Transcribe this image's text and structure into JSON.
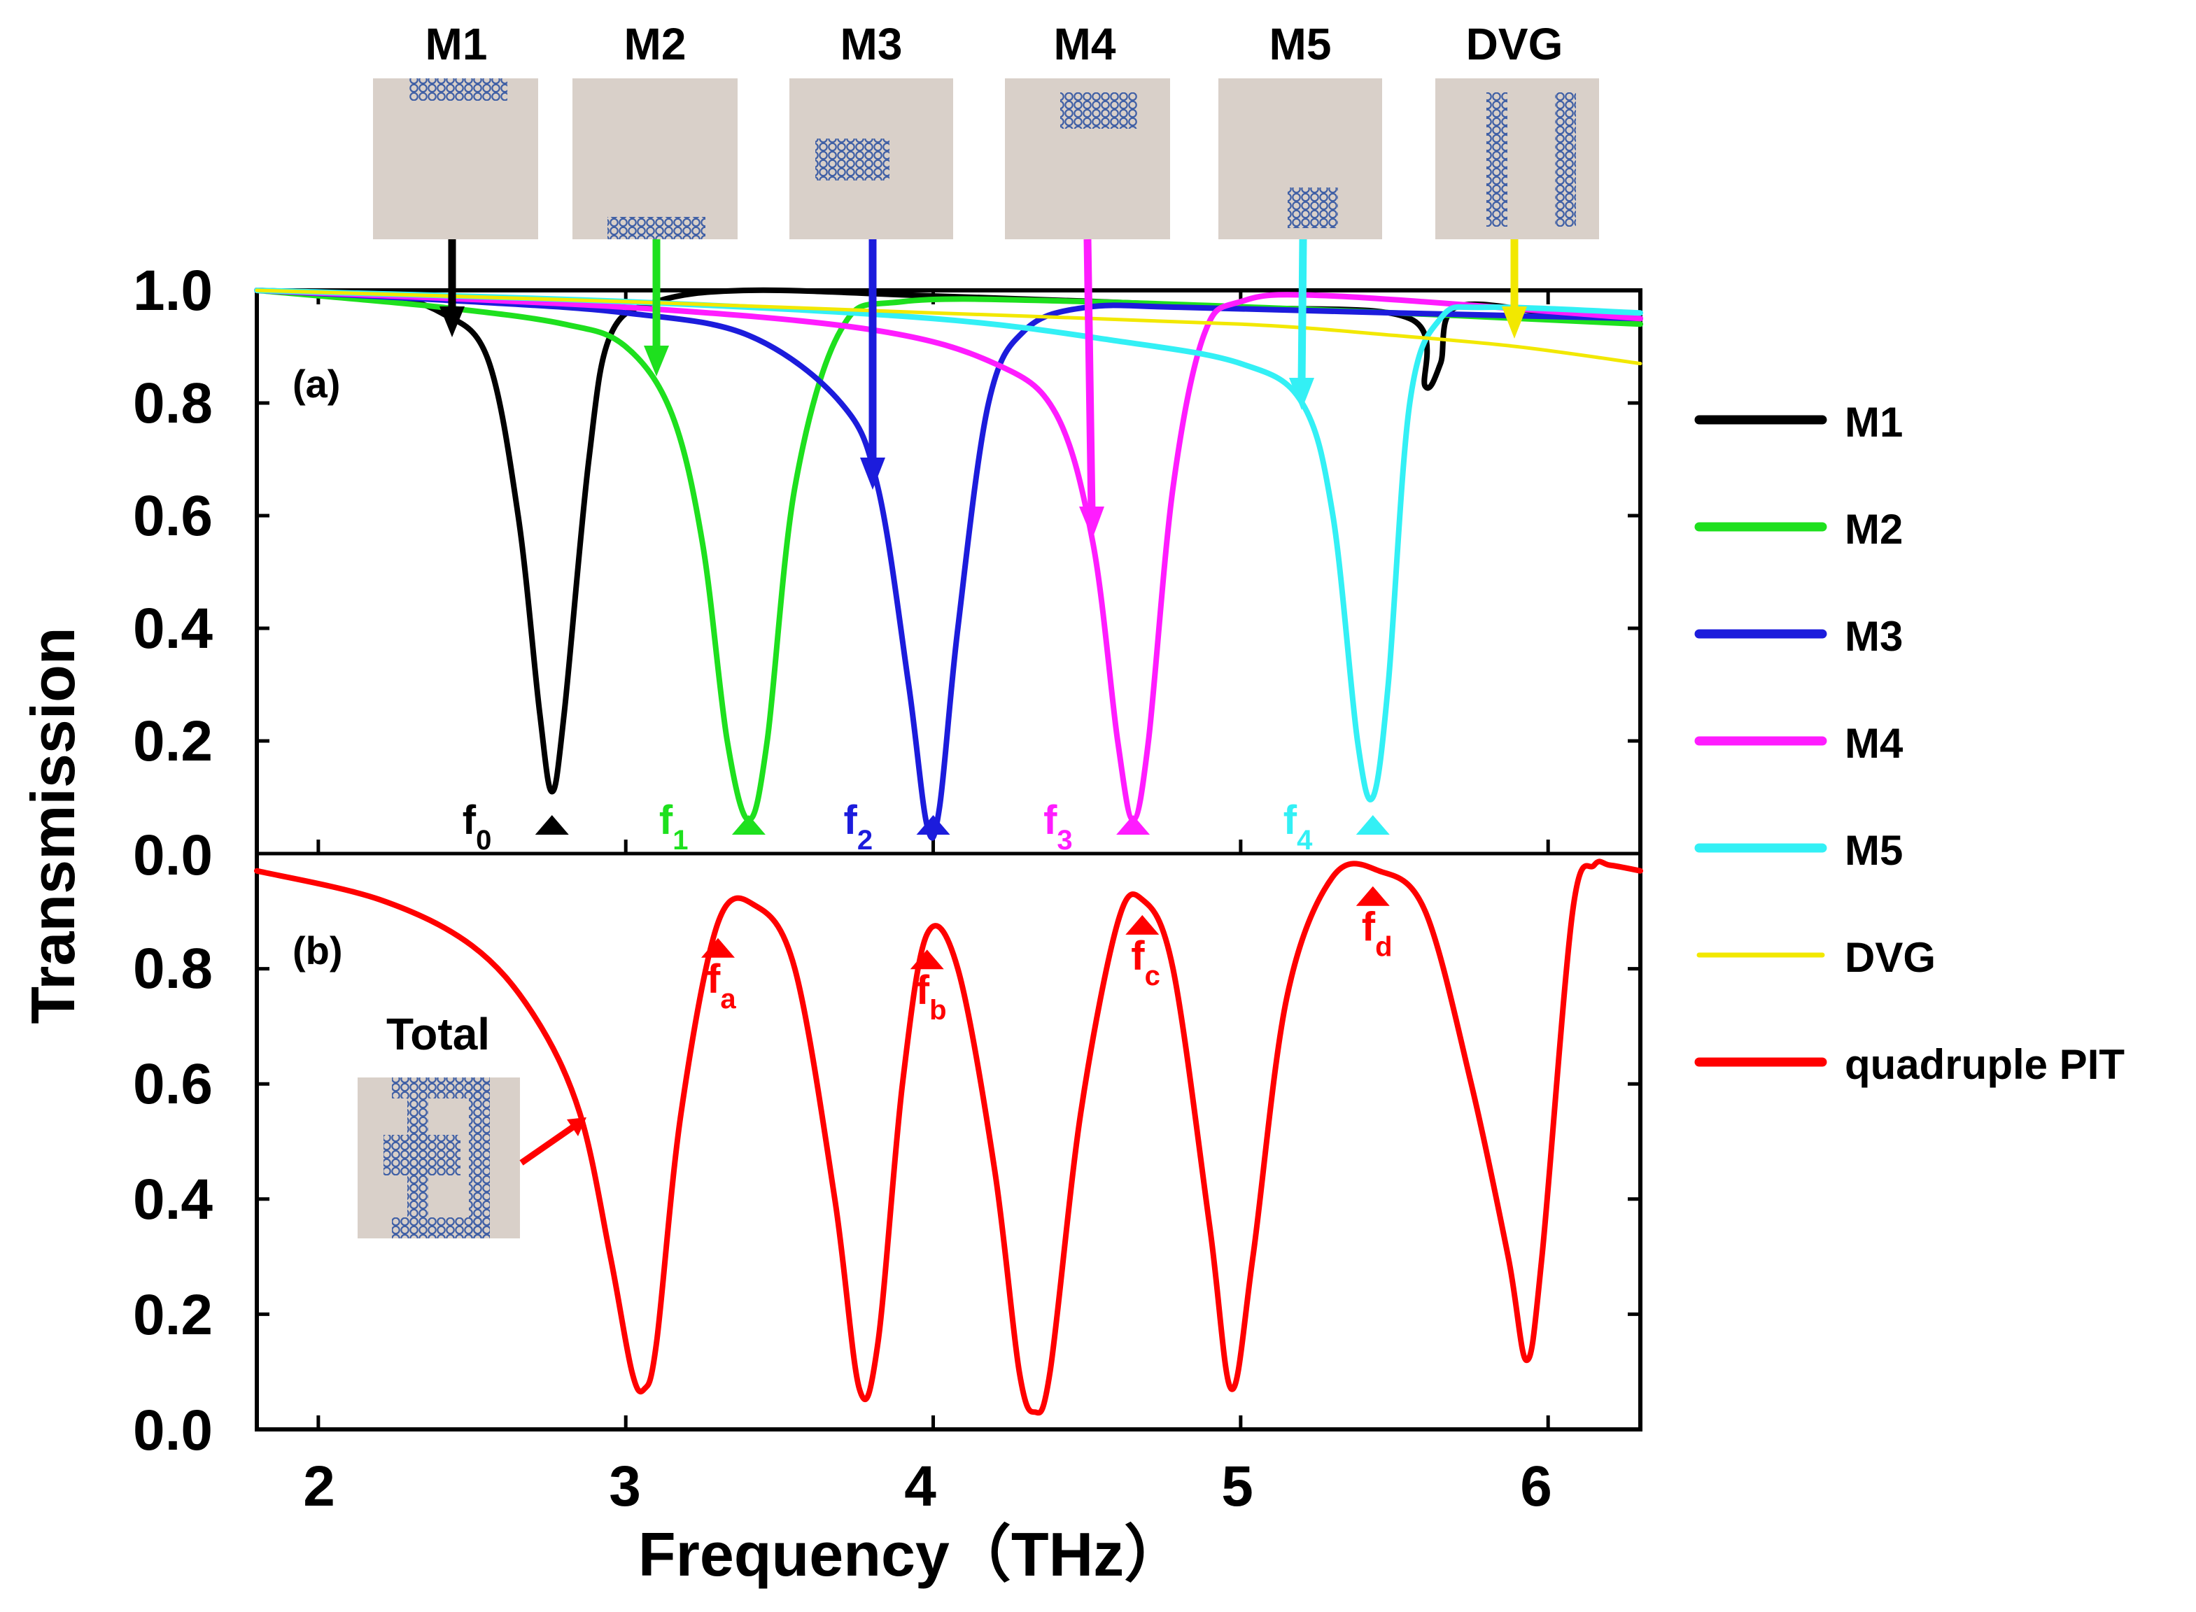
{
  "chart_data": [
    {
      "panel": "(a)",
      "type": "line",
      "ylabel": "Transmission",
      "xlim": [
        1.8,
        6.3
      ],
      "ylim": [
        0.0,
        1.0
      ],
      "yticks": [
        "0.0",
        "0.2",
        "0.4",
        "0.6",
        "0.8",
        "1.0"
      ],
      "series": [
        {
          "name": "M1",
          "color": "#000000",
          "x": [
            1.8,
            2.2,
            2.4,
            2.55,
            2.65,
            2.72,
            2.76,
            2.8,
            2.88,
            2.95,
            3.1,
            3.4,
            4.0,
            5.0,
            5.55,
            5.6,
            5.65,
            5.7,
            6.0,
            6.3
          ],
          "y": [
            1.0,
            0.99,
            0.96,
            0.88,
            0.6,
            0.25,
            0.11,
            0.25,
            0.7,
            0.92,
            0.98,
            1.0,
            0.99,
            0.97,
            0.95,
            0.83,
            0.87,
            0.97,
            0.96,
            0.94
          ]
        },
        {
          "name": "M2",
          "color": "#1ee01e",
          "x": [
            1.8,
            2.4,
            2.8,
            3.0,
            3.15,
            3.25,
            3.33,
            3.4,
            3.46,
            3.55,
            3.7,
            3.9,
            4.5,
            5.5,
            6.3
          ],
          "y": [
            1.0,
            0.97,
            0.94,
            0.9,
            0.78,
            0.55,
            0.2,
            0.06,
            0.2,
            0.65,
            0.93,
            0.98,
            0.98,
            0.96,
            0.94
          ]
        },
        {
          "name": "M3",
          "color": "#1c1cdc",
          "x": [
            1.8,
            2.5,
            3.0,
            3.4,
            3.7,
            3.82,
            3.92,
            3.98,
            4.02,
            4.08,
            4.18,
            4.3,
            4.5,
            4.8,
            5.5,
            6.3
          ],
          "y": [
            1.0,
            0.98,
            0.96,
            0.92,
            0.8,
            0.65,
            0.3,
            0.05,
            0.08,
            0.4,
            0.8,
            0.93,
            0.97,
            0.97,
            0.96,
            0.95
          ]
        },
        {
          "name": "M4",
          "color": "#ff1cff",
          "x": [
            1.8,
            3.0,
            3.8,
            4.2,
            4.4,
            4.52,
            4.6,
            4.65,
            4.7,
            4.78,
            4.88,
            5.0,
            5.3,
            6.3
          ],
          "y": [
            1.0,
            0.97,
            0.93,
            0.87,
            0.78,
            0.55,
            0.2,
            0.06,
            0.2,
            0.65,
            0.92,
            0.98,
            0.99,
            0.95
          ]
        },
        {
          "name": "M5",
          "color": "#33f0f5",
          "x": [
            1.8,
            3.0,
            4.0,
            4.6,
            5.0,
            5.2,
            5.3,
            5.38,
            5.43,
            5.48,
            5.55,
            5.65,
            5.8,
            6.3
          ],
          "y": [
            1.0,
            0.98,
            0.95,
            0.91,
            0.87,
            0.8,
            0.6,
            0.2,
            0.1,
            0.3,
            0.8,
            0.95,
            0.97,
            0.96
          ]
        },
        {
          "name": "DVG",
          "color": "#f2e800",
          "x": [
            1.8,
            3.0,
            4.0,
            5.0,
            5.5,
            5.9,
            6.3
          ],
          "y": [
            1.0,
            0.98,
            0.96,
            0.94,
            0.92,
            0.9,
            0.87
          ]
        }
      ],
      "markers": [
        {
          "label": "f",
          "sub": "0",
          "x": 2.76,
          "color": "#000000"
        },
        {
          "label": "f",
          "sub": "1",
          "x": 3.4,
          "color": "#1ee01e"
        },
        {
          "label": "f",
          "sub": "2",
          "x": 4.0,
          "color": "#1c1cdc"
        },
        {
          "label": "f",
          "sub": "3",
          "x": 4.65,
          "color": "#ff1cff"
        },
        {
          "label": "f",
          "sub": "4",
          "x": 5.43,
          "color": "#33f0f5"
        }
      ]
    },
    {
      "panel": "(b)",
      "type": "line",
      "xlabel": "Frequency（THz）",
      "ylabel": "Transmission",
      "xlim": [
        1.8,
        6.3
      ],
      "ylim": [
        0.0,
        1.0
      ],
      "xticks": [
        "2",
        "3",
        "4",
        "5",
        "6"
      ],
      "yticks": [
        "0.0",
        "0.2",
        "0.4",
        "0.6",
        "0.8",
        "1.0"
      ],
      "series": [
        {
          "name": "quadruple PIT",
          "color": "#ff0000",
          "x": [
            1.8,
            2.2,
            2.5,
            2.7,
            2.85,
            2.95,
            3.02,
            3.06,
            3.1,
            3.18,
            3.3,
            3.42,
            3.55,
            3.68,
            3.76,
            3.82,
            3.9,
            3.98,
            4.08,
            4.2,
            4.28,
            4.33,
            4.38,
            4.48,
            4.6,
            4.68,
            4.78,
            4.9,
            4.97,
            5.04,
            5.15,
            5.3,
            5.45,
            5.6,
            5.75,
            5.87,
            5.93,
            5.98,
            6.08,
            6.15,
            6.2,
            6.3
          ],
          "y": [
            0.97,
            0.92,
            0.84,
            0.72,
            0.55,
            0.3,
            0.1,
            0.07,
            0.15,
            0.55,
            0.88,
            0.91,
            0.8,
            0.4,
            0.07,
            0.15,
            0.6,
            0.86,
            0.8,
            0.45,
            0.1,
            0.03,
            0.1,
            0.55,
            0.88,
            0.92,
            0.8,
            0.35,
            0.07,
            0.3,
            0.75,
            0.96,
            0.97,
            0.9,
            0.6,
            0.3,
            0.12,
            0.3,
            0.9,
            0.98,
            0.98,
            0.97
          ]
        }
      ],
      "markers": [
        {
          "label": "f",
          "sub": "a",
          "x": 3.3,
          "color": "#ff0000"
        },
        {
          "label": "f",
          "sub": "b",
          "x": 3.98,
          "color": "#ff0000"
        },
        {
          "label": "f",
          "sub": "c",
          "x": 4.68,
          "color": "#ff0000"
        },
        {
          "label": "f",
          "sub": "d",
          "x": 5.43,
          "color": "#ff0000"
        }
      ]
    }
  ],
  "structures": [
    "M1",
    "M2",
    "M3",
    "M4",
    "M5",
    "DVG"
  ],
  "inset_label": "Total",
  "legend": [
    {
      "label": "M1",
      "color": "#000000"
    },
    {
      "label": "M2",
      "color": "#1ee01e"
    },
    {
      "label": "M3",
      "color": "#1c1cdc"
    },
    {
      "label": "M4",
      "color": "#ff1cff"
    },
    {
      "label": "M5",
      "color": "#33f0f5"
    },
    {
      "label": "DVG",
      "color": "#f2e800"
    },
    {
      "label": " quadruple PIT",
      "color": "#ff0000"
    }
  ]
}
